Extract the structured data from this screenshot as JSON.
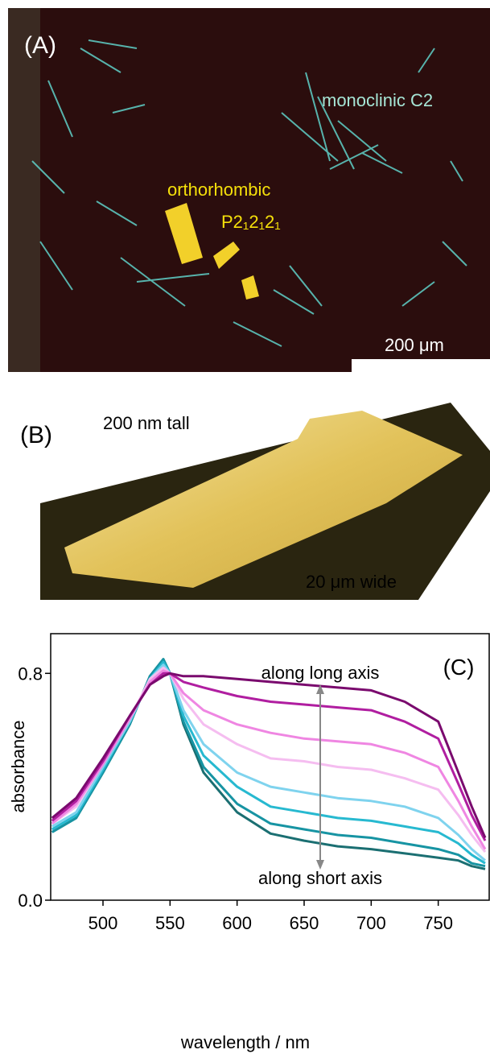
{
  "panel_a": {
    "label": "(A)",
    "monoclinic": "monoclinic C2",
    "orthorhombic": "orthorhombic",
    "space_group": "P2₁2₁2₁",
    "scale_bar": "200 μm"
  },
  "panel_b": {
    "label": "(B)",
    "height": "200 nm tall",
    "width": "20 μm wide"
  },
  "chart_data": {
    "type": "line",
    "panel_label": "(C)",
    "x_label": "wavelength / nm",
    "y_label": "absorbance",
    "annotations": [
      "along long axis",
      "along short axis"
    ],
    "xlim": [
      461,
      788
    ],
    "ylim": [
      0,
      0.94
    ],
    "xticks": [
      500,
      550,
      600,
      650,
      700,
      750
    ],
    "yticks": [
      {
        "value": 0,
        "label": "0.0"
      },
      0.8
    ],
    "x": [
      462,
      480,
      500,
      520,
      535,
      545,
      550,
      560,
      575,
      600,
      625,
      650,
      675,
      700,
      725,
      750,
      765,
      775,
      785
    ],
    "series": [
      {
        "color": "#1b6f72",
        "values": [
          0.24,
          0.29,
          0.45,
          0.62,
          0.79,
          0.85,
          0.8,
          0.62,
          0.45,
          0.31,
          0.235,
          0.21,
          0.19,
          0.18,
          0.165,
          0.15,
          0.14,
          0.12,
          0.11
        ]
      },
      {
        "color": "#1794a3",
        "values": [
          0.24,
          0.29,
          0.45,
          0.62,
          0.79,
          0.85,
          0.8,
          0.63,
          0.47,
          0.34,
          0.27,
          0.25,
          0.23,
          0.22,
          0.2,
          0.18,
          0.16,
          0.13,
          0.12
        ]
      },
      {
        "color": "#27b9d0",
        "values": [
          0.25,
          0.3,
          0.46,
          0.63,
          0.78,
          0.84,
          0.8,
          0.65,
          0.51,
          0.4,
          0.33,
          0.31,
          0.29,
          0.28,
          0.26,
          0.24,
          0.2,
          0.16,
          0.13
        ]
      },
      {
        "color": "#7fd3ee",
        "values": [
          0.26,
          0.31,
          0.47,
          0.63,
          0.78,
          0.83,
          0.8,
          0.67,
          0.55,
          0.45,
          0.4,
          0.38,
          0.36,
          0.35,
          0.33,
          0.29,
          0.23,
          0.18,
          0.14
        ]
      },
      {
        "color": "#f5bdf0",
        "values": [
          0.27,
          0.33,
          0.48,
          0.64,
          0.78,
          0.82,
          0.8,
          0.71,
          0.62,
          0.55,
          0.5,
          0.49,
          0.47,
          0.46,
          0.43,
          0.39,
          0.3,
          0.23,
          0.17
        ]
      },
      {
        "color": "#ef86e2",
        "values": [
          0.27,
          0.34,
          0.48,
          0.64,
          0.77,
          0.81,
          0.8,
          0.73,
          0.67,
          0.62,
          0.59,
          0.57,
          0.56,
          0.55,
          0.52,
          0.47,
          0.35,
          0.26,
          0.18
        ]
      },
      {
        "color": "#b01ea0",
        "values": [
          0.28,
          0.35,
          0.49,
          0.65,
          0.76,
          0.8,
          0.8,
          0.77,
          0.75,
          0.72,
          0.7,
          0.69,
          0.68,
          0.67,
          0.63,
          0.57,
          0.41,
          0.3,
          0.21
        ]
      },
      {
        "color": "#7a0a6e",
        "values": [
          0.29,
          0.36,
          0.5,
          0.65,
          0.76,
          0.79,
          0.8,
          0.79,
          0.79,
          0.78,
          0.77,
          0.76,
          0.75,
          0.74,
          0.7,
          0.63,
          0.45,
          0.33,
          0.22
        ]
      }
    ]
  }
}
